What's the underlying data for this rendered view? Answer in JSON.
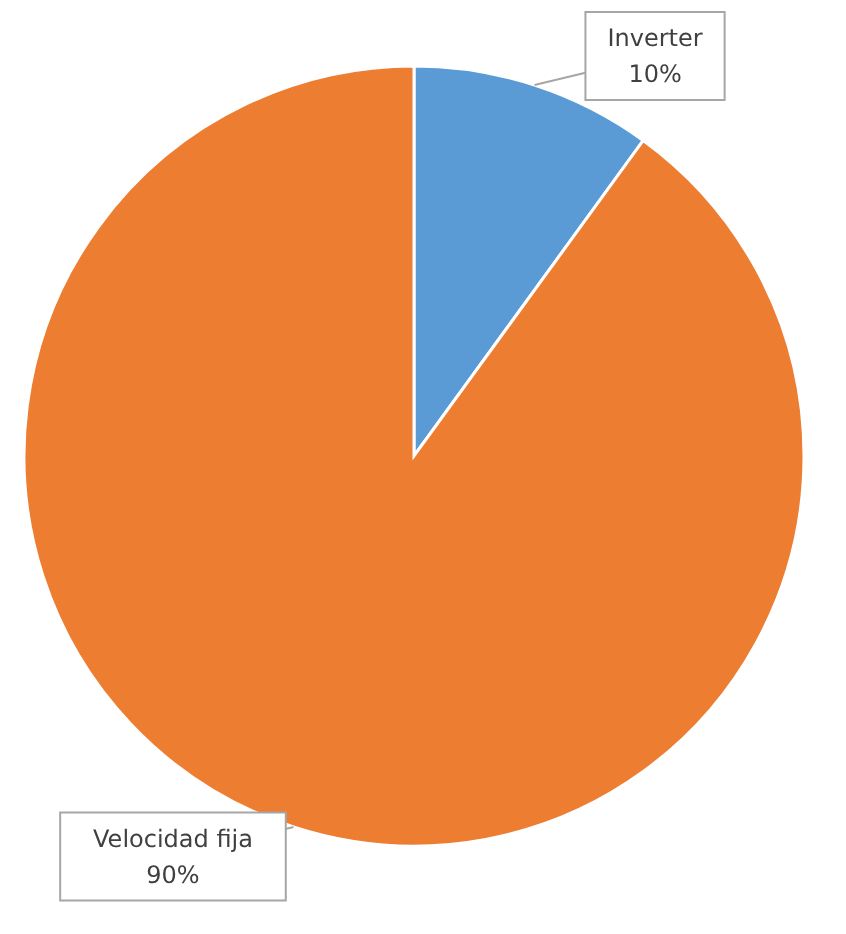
{
  "chart_data": {
    "type": "pie",
    "categories": [
      "Inverter",
      "Velocidad fija"
    ],
    "values": [
      10,
      90
    ],
    "colors": [
      "#5b9bd5",
      "#ed7d31"
    ],
    "value_labels": [
      "10%",
      "90%"
    ]
  }
}
